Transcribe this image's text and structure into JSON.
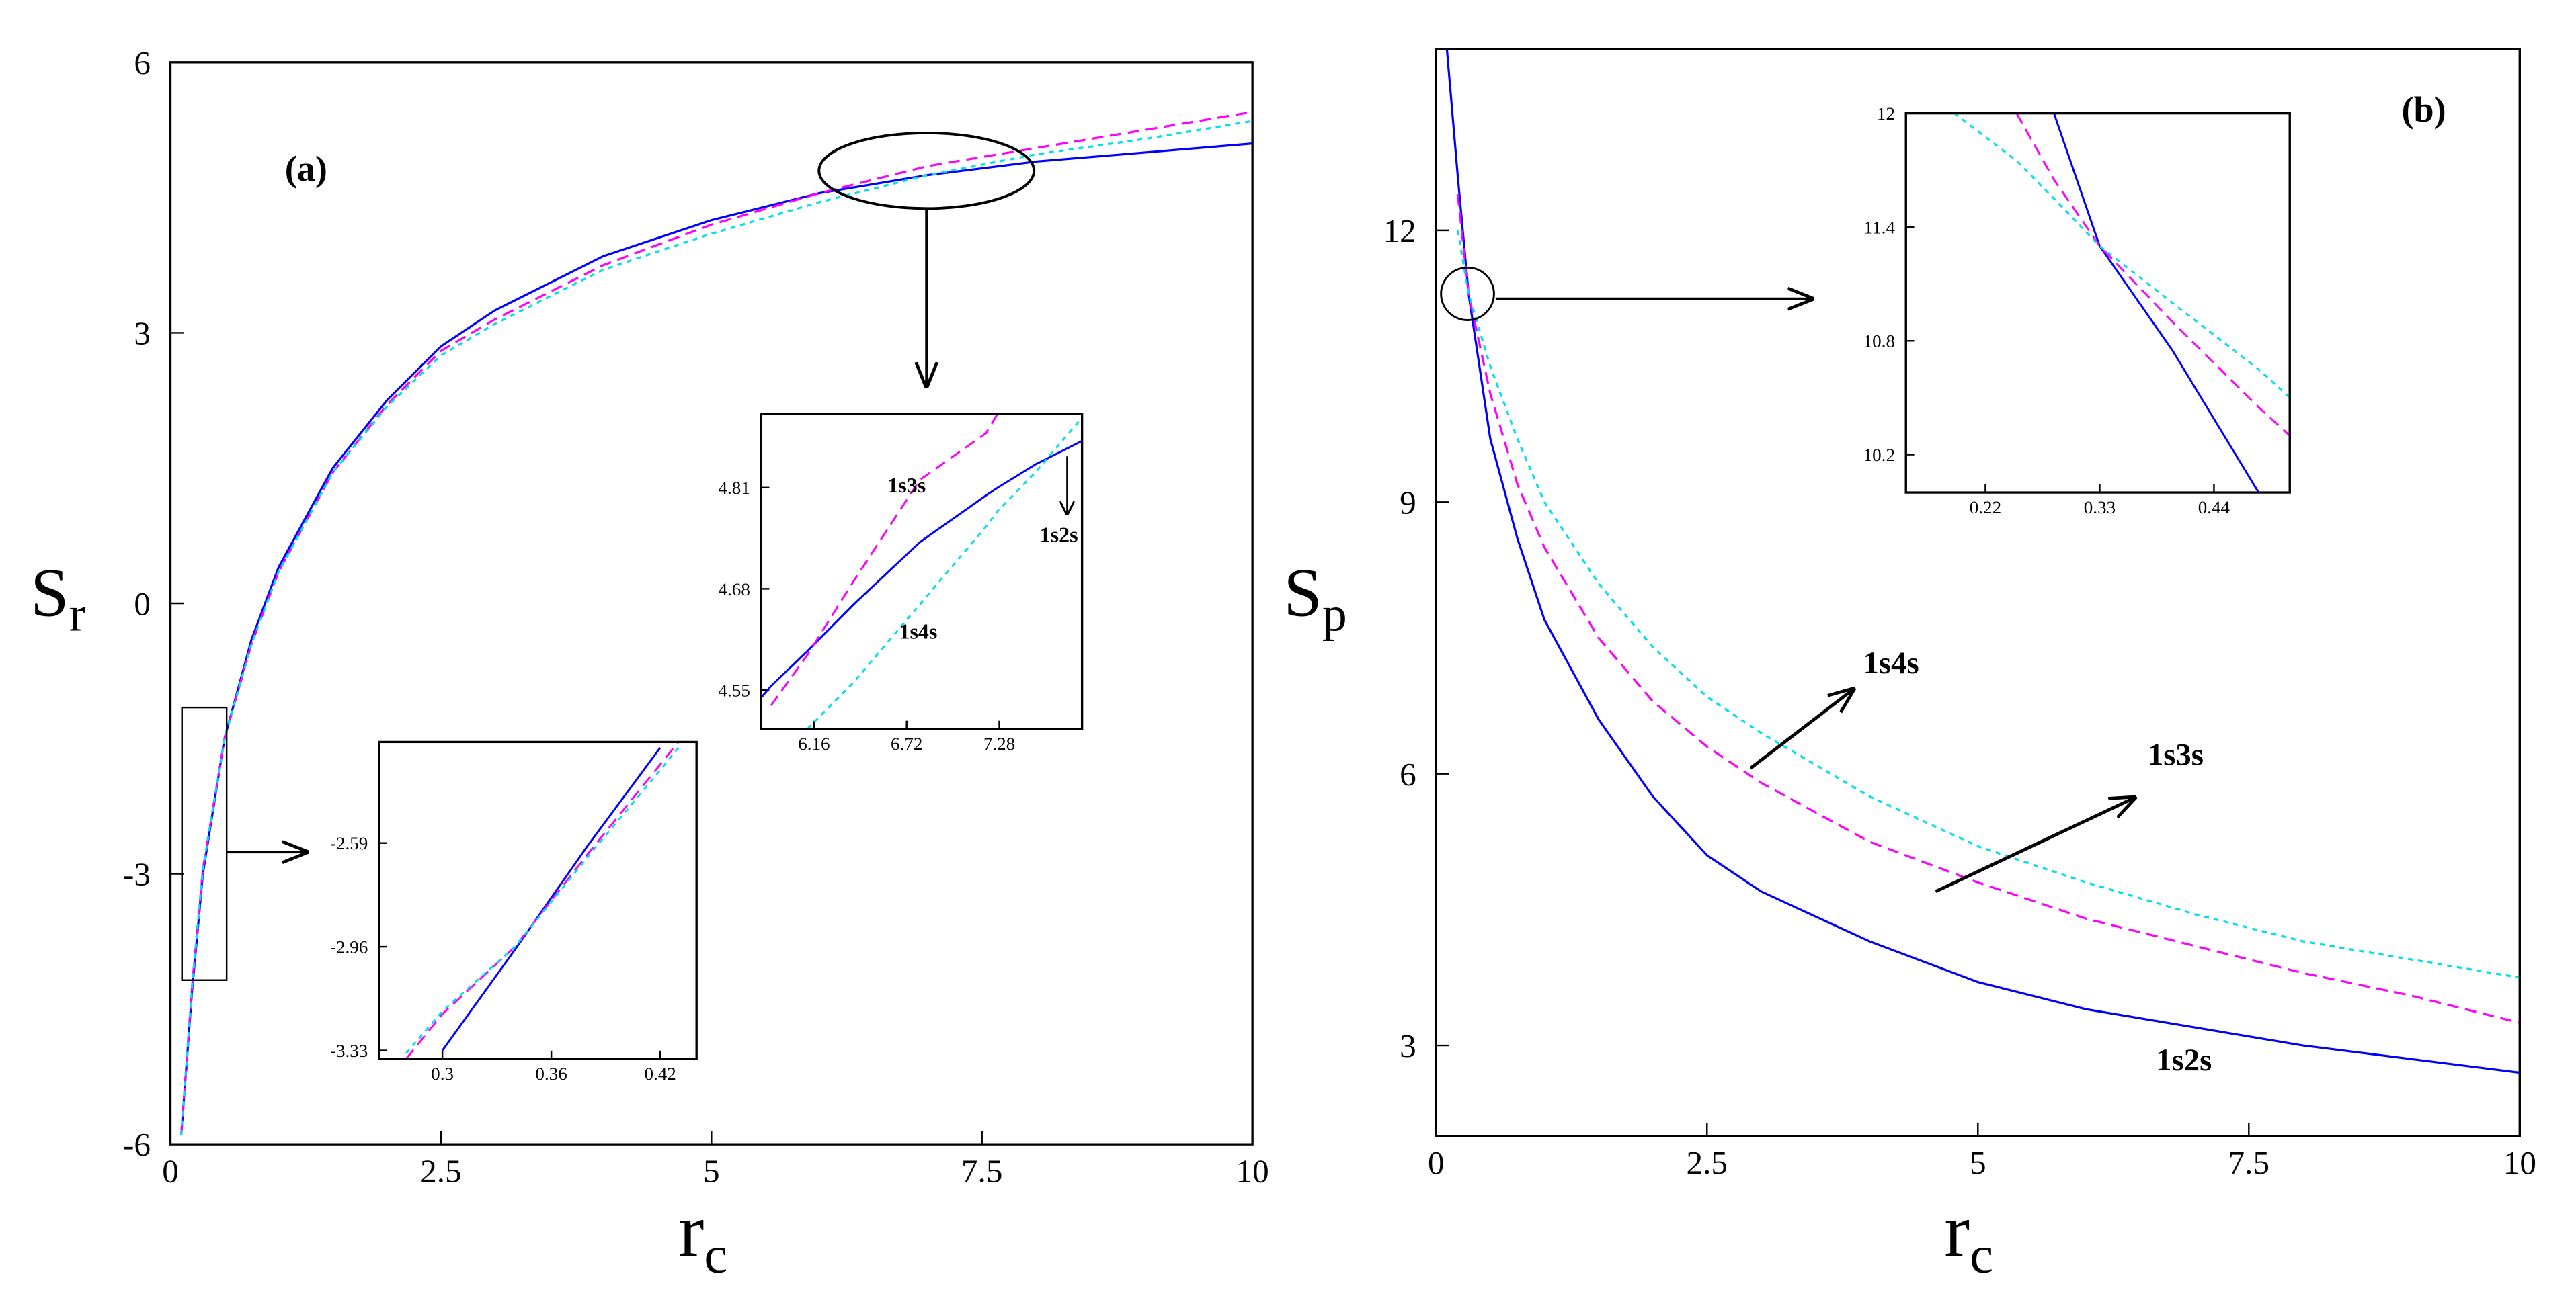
{
  "chart_data": [
    {
      "type": "line",
      "title": "(a)",
      "xlabel": {
        "text": "r",
        "subscript": "c"
      },
      "ylabel": {
        "text": "S",
        "subscript": "r"
      },
      "x": [
        0.1,
        0.2,
        0.3,
        0.5,
        0.75,
        1,
        1.5,
        2,
        2.5,
        3,
        4,
        5,
        6,
        7,
        8,
        9,
        10
      ],
      "series": [
        {
          "color": "#0000ff",
          "dash": "solid",
          "values": [
            -5.9,
            -4.3,
            -3.0,
            -1.5,
            -0.4,
            0.4,
            1.5,
            2.25,
            2.85,
            3.25,
            3.85,
            4.25,
            4.55,
            4.75,
            4.9,
            5.0,
            5.1
          ]
        },
        {
          "color": "#ff00ff",
          "dash": "dashed",
          "values": [
            -5.9,
            -4.25,
            -2.95,
            -1.5,
            -0.45,
            0.35,
            1.45,
            2.2,
            2.8,
            3.15,
            3.75,
            4.2,
            4.55,
            4.85,
            5.05,
            5.25,
            5.45
          ]
        },
        {
          "color": "#00e0e8",
          "dash": "dotted",
          "values": [
            -5.9,
            -4.25,
            -2.95,
            -1.5,
            -0.45,
            0.35,
            1.45,
            2.18,
            2.75,
            3.1,
            3.7,
            4.1,
            4.45,
            4.75,
            4.98,
            5.15,
            5.35
          ]
        }
      ],
      "xlim": [
        0,
        10
      ],
      "ylim": [
        -6,
        6
      ],
      "xticks": [
        0,
        2.5,
        5,
        7.5,
        10
      ],
      "yticks": [
        -6,
        -3,
        0,
        3,
        6
      ]
    },
    {
      "type": "line",
      "x": [
        0.28,
        0.3,
        0.34,
        0.38,
        0.42,
        0.43
      ],
      "series": [
        {
          "color": "#0000ff",
          "dash": "solid",
          "values": [
            null,
            -3.33,
            -2.97,
            -2.6,
            -2.25,
            null
          ]
        },
        {
          "color": "#ff00ff",
          "dash": "dashed",
          "values": [
            -3.36,
            -3.2,
            -2.96,
            -2.63,
            -2.31,
            -2.23
          ]
        },
        {
          "color": "#00e0e8",
          "dash": "dotted",
          "values": [
            -3.34,
            -3.19,
            -2.96,
            -2.64,
            -2.33,
            -2.25
          ]
        }
      ],
      "xlim": [
        0.265,
        0.44
      ],
      "ylim": [
        -3.36,
        -2.23
      ],
      "xticks": [
        0.3,
        0.36,
        0.42
      ],
      "yticks": [
        -3.33,
        -2.96,
        -2.59
      ]
    },
    {
      "type": "line",
      "x": [
        5.84,
        5.9,
        6.12,
        6.4,
        6.8,
        7.2,
        7.27,
        7.5,
        7.78
      ],
      "series": [
        {
          "name": "1s2s",
          "color": "#0000ff",
          "dash": "solid",
          "values": [
            4.54,
            4.555,
            4.6,
            4.66,
            4.74,
            4.8,
            4.81,
            4.84,
            4.87
          ]
        },
        {
          "name": "1s3s",
          "color": "#ff00ff",
          "dash": "dashed",
          "values": [
            null,
            4.53,
            4.595,
            4.69,
            4.82,
            4.88,
            4.905,
            null,
            null
          ]
        },
        {
          "name": "1s4s",
          "color": "#00e0e8",
          "dash": "dotted",
          "values": [
            null,
            null,
            4.5,
            4.56,
            4.66,
            4.76,
            4.78,
            4.83,
            4.9
          ]
        }
      ],
      "xlim": [
        5.84,
        7.78
      ],
      "ylim": [
        4.5,
        4.905
      ],
      "xticks": [
        6.16,
        6.72,
        7.28
      ],
      "yticks": [
        4.55,
        4.68,
        4.81
      ]
    },
    {
      "type": "line",
      "title": "(b)",
      "xlabel": {
        "text": "r",
        "subscript": "c"
      },
      "ylabel": {
        "text": "S",
        "subscript": "p"
      },
      "x": [
        0.1,
        0.2,
        0.3,
        0.5,
        0.75,
        1,
        1.5,
        2,
        2.5,
        3,
        4,
        5,
        6,
        7,
        8,
        9,
        10
      ],
      "series": [
        {
          "name": "1s2s",
          "color": "#0000ff",
          "dash": "solid",
          "values": [
            14,
            12.6,
            11.3,
            9.7,
            8.6,
            7.7,
            6.6,
            5.75,
            5.1,
            4.7,
            4.15,
            3.7,
            3.4,
            3.2,
            3.0,
            2.85,
            2.7
          ]
        },
        {
          "name": "1s3s",
          "color": "#ff00ff",
          "dash": "dashed",
          "values": [
            null,
            12.4,
            11.3,
            10.2,
            9.2,
            8.5,
            7.5,
            6.8,
            6.3,
            5.9,
            5.25,
            4.8,
            4.4,
            4.1,
            3.8,
            3.55,
            3.25
          ]
        },
        {
          "name": "1s4s",
          "color": "#00e0e8",
          "dash": "dotted",
          "values": [
            null,
            12.0,
            11.3,
            10.5,
            9.7,
            9.0,
            8.1,
            7.4,
            6.85,
            6.45,
            5.75,
            5.2,
            4.8,
            4.45,
            4.15,
            3.95,
            3.75
          ]
        }
      ],
      "xlim": [
        0,
        10
      ],
      "ylim": [
        2,
        14
      ],
      "xticks": [
        0,
        2.5,
        5,
        7.5,
        10
      ],
      "yticks": [
        3,
        6,
        9,
        12
      ]
    },
    {
      "type": "line",
      "x": [
        0.19,
        0.25,
        0.286,
        0.33,
        0.4,
        0.483,
        0.513
      ],
      "series": [
        {
          "color": "#0000ff",
          "dash": "solid",
          "values": [
            null,
            null,
            12,
            11.3,
            10.75,
            10,
            null
          ]
        },
        {
          "color": "#ff00ff",
          "dash": "dashed",
          "values": [
            null,
            12,
            11.65,
            11.3,
            10.9,
            10.45,
            10.3
          ]
        },
        {
          "color": "#00e0e8",
          "dash": "dotted",
          "values": [
            12,
            11.75,
            11.55,
            11.3,
            11.0,
            10.65,
            10.5
          ]
        }
      ],
      "xlim": [
        0.1435,
        0.513
      ],
      "ylim": [
        10,
        12
      ],
      "xticks": [
        0.22,
        0.33,
        0.44
      ],
      "yticks": [
        10.2,
        10.8,
        11.4,
        12
      ]
    }
  ]
}
